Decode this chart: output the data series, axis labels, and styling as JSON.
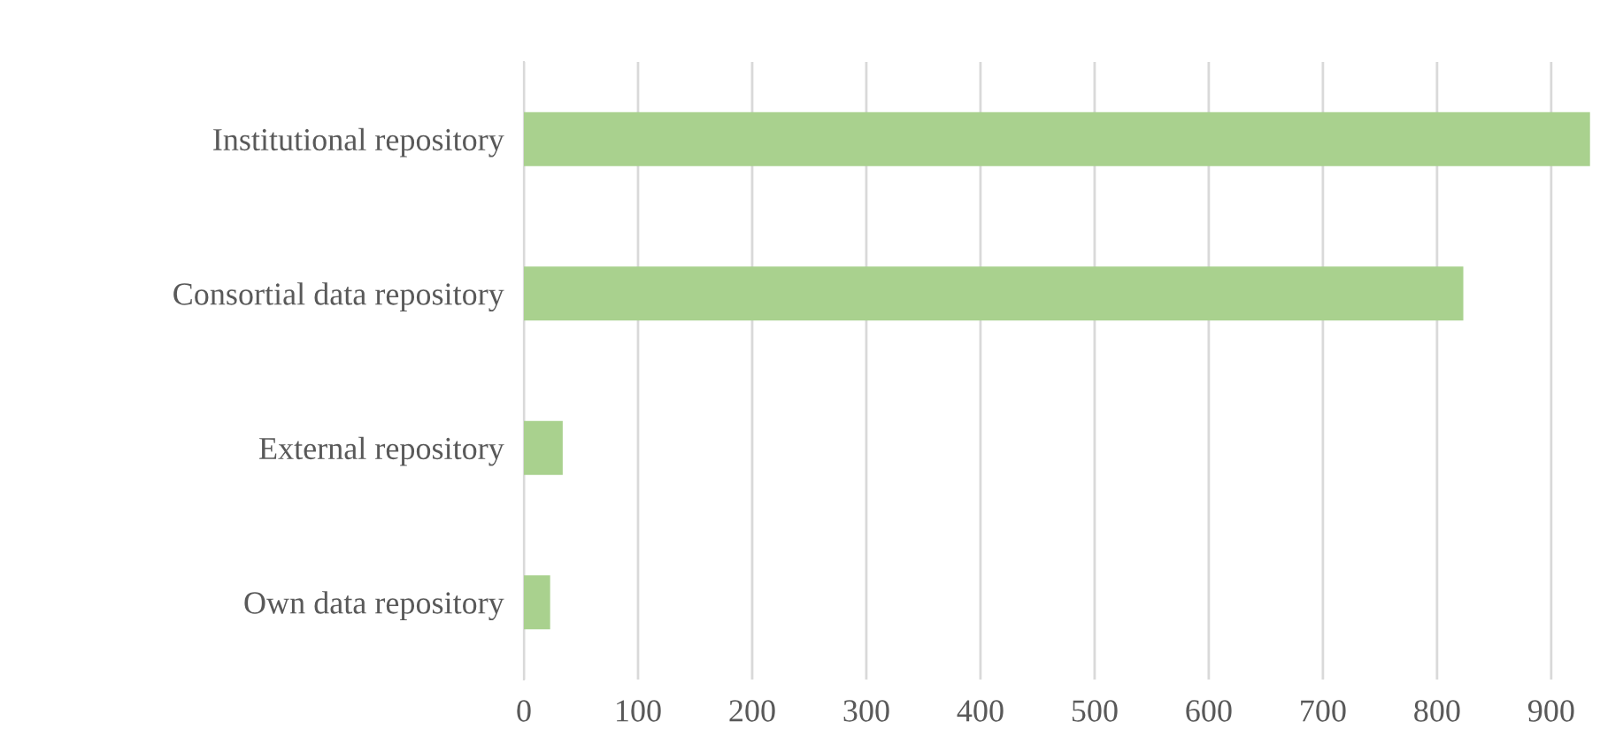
{
  "chart_data": {
    "type": "bar",
    "orientation": "horizontal",
    "categories": [
      "Institutional repository",
      "Consortial data repository",
      "External repository",
      "Own data repository"
    ],
    "values": [
      934,
      823,
      34,
      23
    ],
    "color": "#a9d18e",
    "xlim": [
      0,
      935
    ],
    "xticks": [
      0,
      100,
      200,
      300,
      400,
      500,
      600,
      700,
      800,
      900
    ],
    "grid": "x"
  }
}
